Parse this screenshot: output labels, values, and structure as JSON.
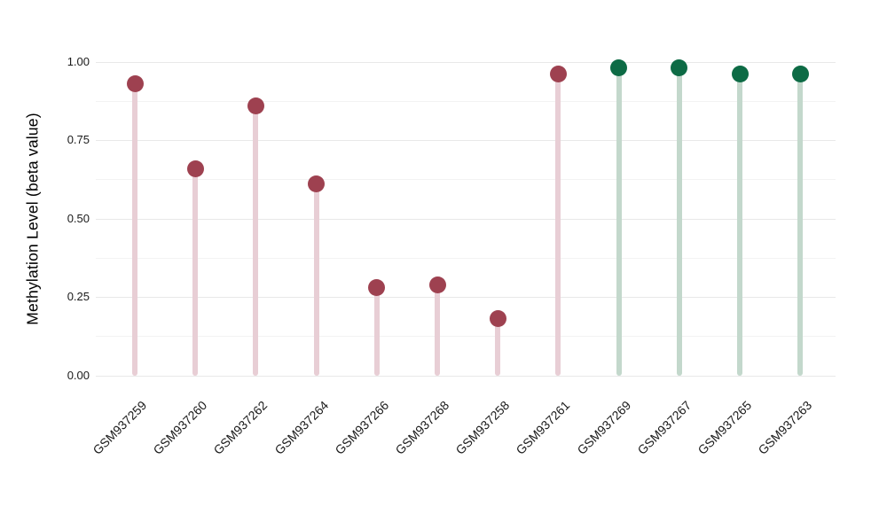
{
  "chart_data": {
    "type": "lollipop",
    "title": "",
    "ylabel": "Methylation Level (beta value)",
    "xlabel": "",
    "ylim": [
      0,
      1
    ],
    "yticks": [
      {
        "value": 0.0,
        "label": "0.00"
      },
      {
        "value": 0.25,
        "label": "0.25"
      },
      {
        "value": 0.5,
        "label": "0.50"
      },
      {
        "value": 0.75,
        "label": "0.75"
      },
      {
        "value": 1.0,
        "label": "1.00"
      }
    ],
    "minor_gridlines": [
      0.125,
      0.375,
      0.625,
      0.875
    ],
    "grid": "horizontal",
    "legend_position": "none",
    "x_tick_angle_deg": 45,
    "categories": [
      "GSM937259",
      "GSM937260",
      "GSM937262",
      "GSM937264",
      "GSM937266",
      "GSM937268",
      "GSM937258",
      "GSM937261",
      "GSM937269",
      "GSM937267",
      "GSM937265",
      "GSM937263"
    ],
    "values": [
      0.93,
      0.66,
      0.86,
      0.61,
      0.28,
      0.29,
      0.18,
      0.96,
      0.98,
      0.98,
      0.96,
      0.96
    ],
    "point_groups": [
      "maroon",
      "maroon",
      "maroon",
      "maroon",
      "maroon",
      "maroon",
      "maroon",
      "maroon",
      "green",
      "green",
      "green",
      "green"
    ]
  },
  "colors": {
    "background": "#ffffff",
    "grid_major": "#e8e8e8",
    "grid_minor": "#f3f3f3",
    "axis_text": "#1a1a1a",
    "axis_title": "#000000",
    "groups": {
      "maroon": {
        "point": "#9e4150",
        "stem": "#e8ced5"
      },
      "green": {
        "point": "#0d6b45",
        "stem": "#c3d8cc"
      }
    }
  }
}
